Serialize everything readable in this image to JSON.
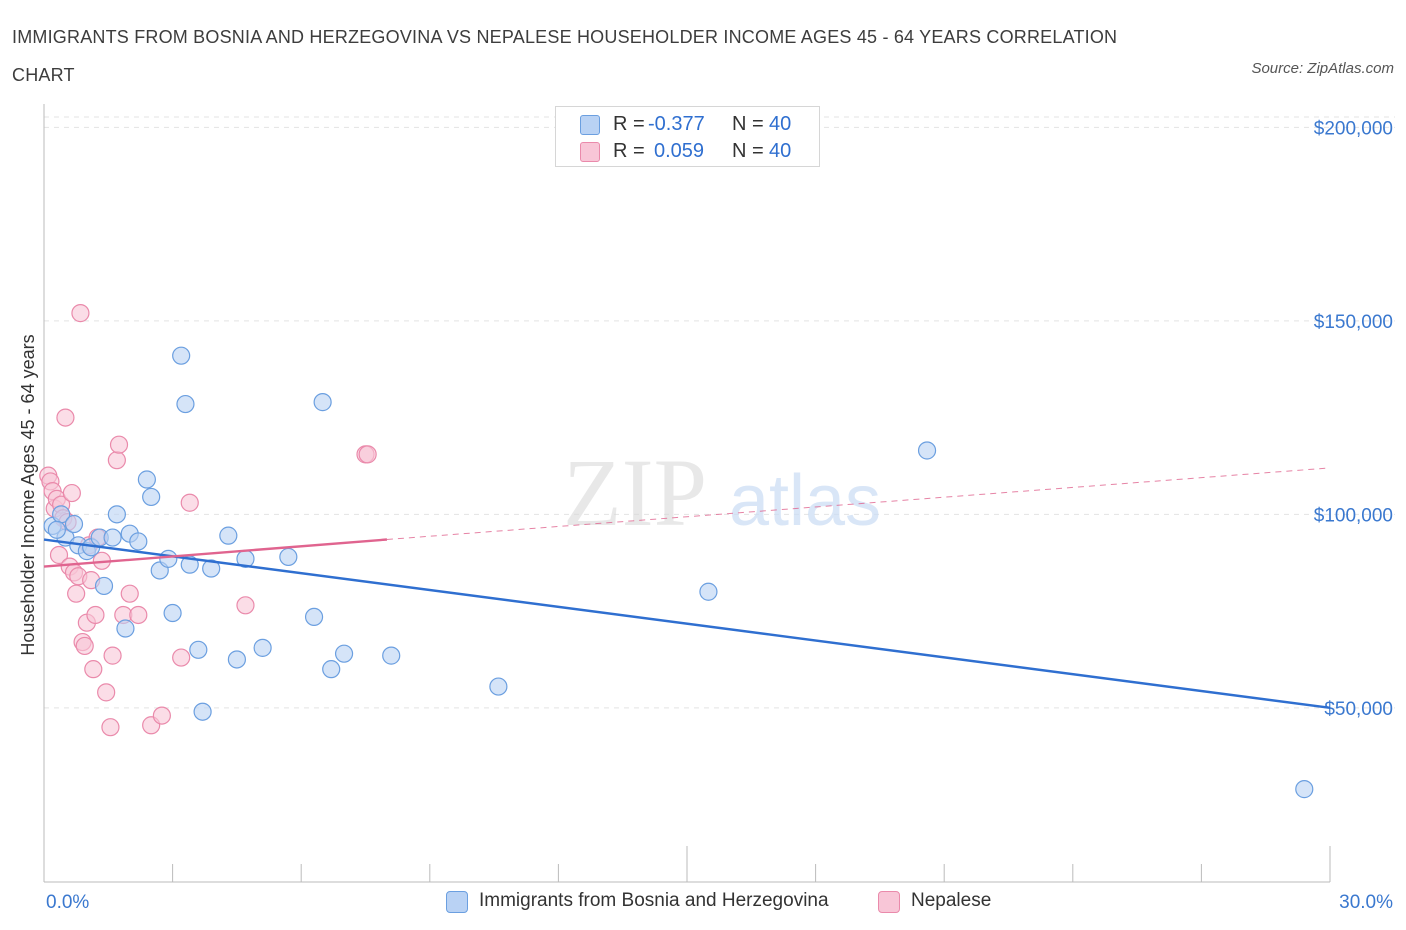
{
  "header": {
    "title": "IMMIGRANTS FROM BOSNIA AND HERZEGOVINA VS NEPALESE HOUSEHOLDER INCOME AGES 45 - 64 YEARS CORRELATION CHART",
    "source": "Source: ZipAtlas.com"
  },
  "watermark": {
    "zip": "ZIP",
    "atlas": "atlas"
  },
  "stats_legend": {
    "r_label": "R =",
    "n_label": "N =",
    "rows": [
      {
        "r": "-0.377",
        "n": "40"
      },
      {
        "r": "0.059",
        "n": "40"
      }
    ]
  },
  "colors": {
    "blue_fill": "#b9d2f4",
    "blue_stroke": "#6b9fe0",
    "blue_line": "#2f6fd0",
    "pink_fill": "#f8c6d7",
    "pink_stroke": "#ea8aab",
    "pink_line": "#e0648f",
    "axis_text": "#3a78cf",
    "grid": "#e3e3e3"
  },
  "chart_data": {
    "type": "scatter",
    "xlabel": "",
    "ylabel": "Householder Income Ages 45 - 64 years",
    "xlim": [
      0,
      30
    ],
    "ylim": [
      5000,
      205000
    ],
    "x_tick_labels": [
      "0.0%",
      "30.0%"
    ],
    "y_ticks": [
      50000,
      100000,
      150000,
      200000
    ],
    "y_tick_labels": [
      "$50,000",
      "$100,000",
      "$150,000",
      "$200,000"
    ],
    "legend_position": "bottom",
    "grid": true,
    "series": [
      {
        "name": "Immigrants from Bosnia and Herzegovina",
        "color": "blue",
        "trend": {
          "x": [
            0,
            30
          ],
          "y": [
            93500,
            50000
          ],
          "dashed_to": null
        },
        "points": [
          [
            0.2,
            97000
          ],
          [
            0.4,
            100000
          ],
          [
            0.5,
            94000
          ],
          [
            0.7,
            97500
          ],
          [
            0.8,
            92000
          ],
          [
            1.0,
            90500
          ],
          [
            1.1,
            91500
          ],
          [
            1.3,
            94000
          ],
          [
            1.4,
            81500
          ],
          [
            1.6,
            94000
          ],
          [
            1.7,
            100000
          ],
          [
            1.9,
            70500
          ],
          [
            2.0,
            95000
          ],
          [
            2.2,
            93000
          ],
          [
            2.4,
            109000
          ],
          [
            2.5,
            104500
          ],
          [
            2.7,
            85500
          ],
          [
            2.9,
            88500
          ],
          [
            3.0,
            74500
          ],
          [
            3.2,
            141000
          ],
          [
            3.3,
            128500
          ],
          [
            3.4,
            87000
          ],
          [
            3.6,
            65000
          ],
          [
            3.7,
            49000
          ],
          [
            3.9,
            86000
          ],
          [
            4.3,
            94500
          ],
          [
            4.5,
            62500
          ],
          [
            4.7,
            88500
          ],
          [
            5.1,
            65500
          ],
          [
            5.7,
            89000
          ],
          [
            6.3,
            73500
          ],
          [
            6.5,
            129000
          ],
          [
            6.7,
            60000
          ],
          [
            7.0,
            64000
          ],
          [
            8.1,
            63500
          ],
          [
            10.6,
            55500
          ],
          [
            15.5,
            80000
          ],
          [
            20.6,
            116500
          ],
          [
            29.4,
            29000
          ],
          [
            0.3,
            96000
          ]
        ]
      },
      {
        "name": "Nepalese",
        "color": "pink",
        "trend": {
          "x": [
            0,
            8.0
          ],
          "y": [
            86500,
            93500
          ],
          "dashed_to": [
            30,
            112000
          ]
        },
        "points": [
          [
            0.1,
            110000
          ],
          [
            0.15,
            108500
          ],
          [
            0.2,
            106000
          ],
          [
            0.25,
            101500
          ],
          [
            0.3,
            104000
          ],
          [
            0.35,
            89500
          ],
          [
            0.4,
            102500
          ],
          [
            0.45,
            99000
          ],
          [
            0.5,
            125000
          ],
          [
            0.55,
            98000
          ],
          [
            0.6,
            86500
          ],
          [
            0.65,
            105500
          ],
          [
            0.7,
            85000
          ],
          [
            0.75,
            79500
          ],
          [
            0.8,
            84000
          ],
          [
            0.85,
            152000
          ],
          [
            0.9,
            67000
          ],
          [
            0.95,
            66000
          ],
          [
            1.0,
            72000
          ],
          [
            1.05,
            92000
          ],
          [
            1.1,
            83000
          ],
          [
            1.15,
            60000
          ],
          [
            1.2,
            74000
          ],
          [
            1.25,
            94000
          ],
          [
            1.35,
            88000
          ],
          [
            1.45,
            54000
          ],
          [
            1.55,
            45000
          ],
          [
            1.6,
            63500
          ],
          [
            1.7,
            114000
          ],
          [
            1.75,
            118000
          ],
          [
            1.85,
            74000
          ],
          [
            2.0,
            79500
          ],
          [
            2.2,
            74000
          ],
          [
            2.5,
            45500
          ],
          [
            2.75,
            48000
          ],
          [
            3.2,
            63000
          ],
          [
            3.4,
            103000
          ],
          [
            4.7,
            76500
          ],
          [
            7.5,
            115500
          ],
          [
            7.55,
            115500
          ]
        ]
      }
    ]
  }
}
